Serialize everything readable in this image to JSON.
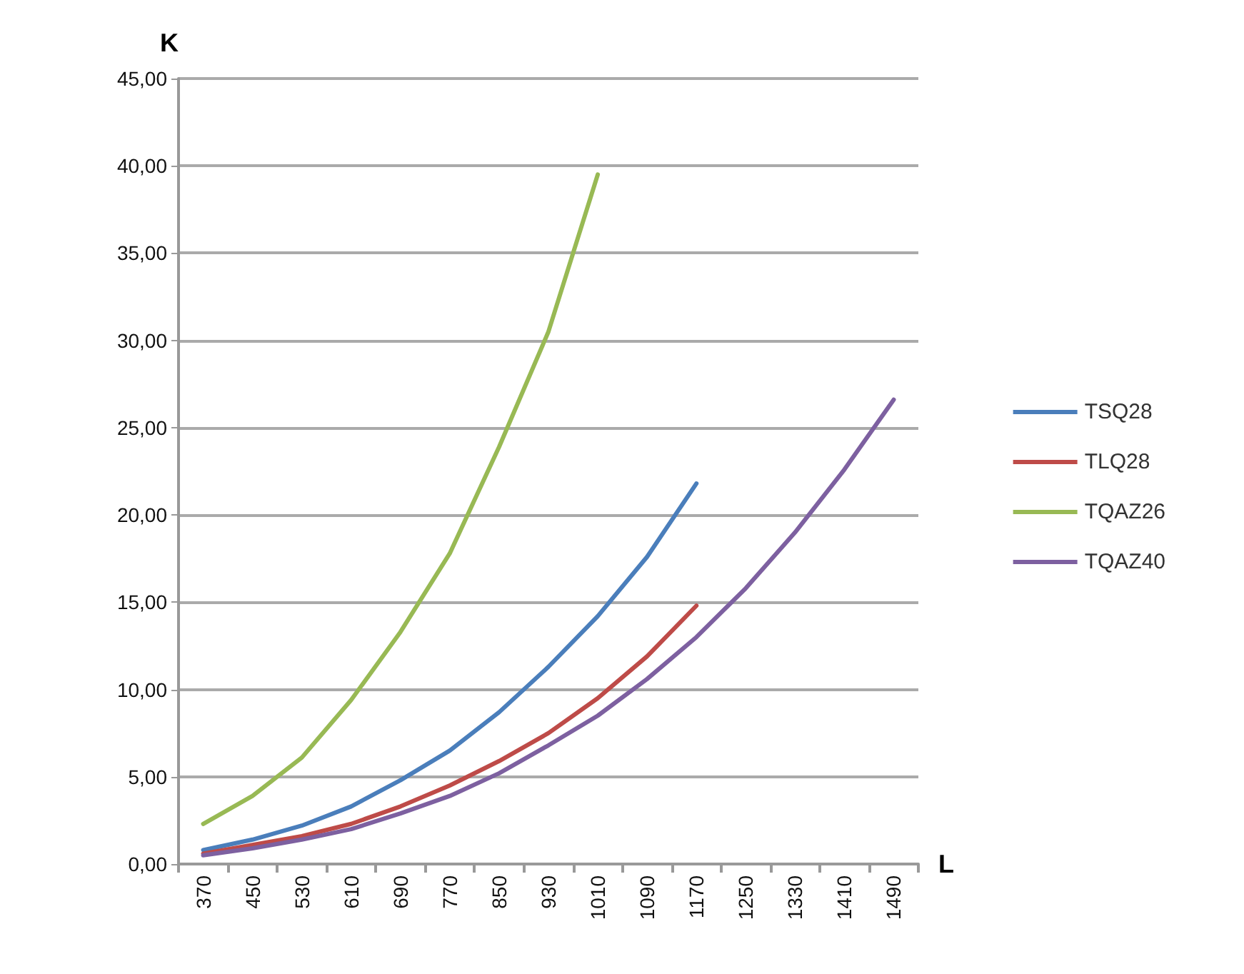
{
  "chart_data": {
    "type": "line",
    "xlabel": "L",
    "ylabel": "K",
    "categories": [
      "370",
      "450",
      "530",
      "610",
      "690",
      "770",
      "850",
      "930",
      "1010",
      "1090",
      "1170",
      "1250",
      "1330",
      "1410",
      "1490"
    ],
    "series": [
      {
        "name": "TSQ28",
        "color": "#4a7ebb",
        "values": [
          0.8,
          1.4,
          2.2,
          3.3,
          4.8,
          6.5,
          8.7,
          11.3,
          14.2,
          17.6,
          21.8,
          null,
          null,
          null,
          null
        ]
      },
      {
        "name": "TLQ28",
        "color": "#be4b48",
        "values": [
          0.6,
          1.1,
          1.6,
          2.3,
          3.3,
          4.5,
          5.9,
          7.5,
          9.5,
          11.9,
          14.8,
          null,
          null,
          null,
          null
        ]
      },
      {
        "name": "TQAZ26",
        "color": "#98b954",
        "values": [
          2.3,
          3.9,
          6.1,
          9.4,
          13.3,
          17.8,
          23.9,
          30.5,
          39.5,
          null,
          null,
          null,
          null,
          null,
          null
        ]
      },
      {
        "name": "TQAZ40",
        "color": "#7d60a0",
        "values": [
          0.5,
          0.9,
          1.4,
          2.0,
          2.9,
          3.9,
          5.2,
          6.8,
          8.5,
          10.6,
          13.0,
          15.8,
          19.0,
          22.6,
          26.6
        ]
      }
    ],
    "ylim": [
      0,
      45
    ],
    "yticks": [
      {
        "value": 0,
        "label": "0,00"
      },
      {
        "value": 5,
        "label": "5,00"
      },
      {
        "value": 10,
        "label": "10,00"
      },
      {
        "value": 15,
        "label": "15,00"
      },
      {
        "value": 20,
        "label": "20,00"
      },
      {
        "value": 25,
        "label": "25,00"
      },
      {
        "value": 30,
        "label": "30,00"
      },
      {
        "value": 35,
        "label": "35,00"
      },
      {
        "value": 40,
        "label": "40,00"
      },
      {
        "value": 45,
        "label": "45,00"
      }
    ],
    "grid": "y",
    "legend": "right",
    "marker": "none",
    "line_style": "solid"
  }
}
